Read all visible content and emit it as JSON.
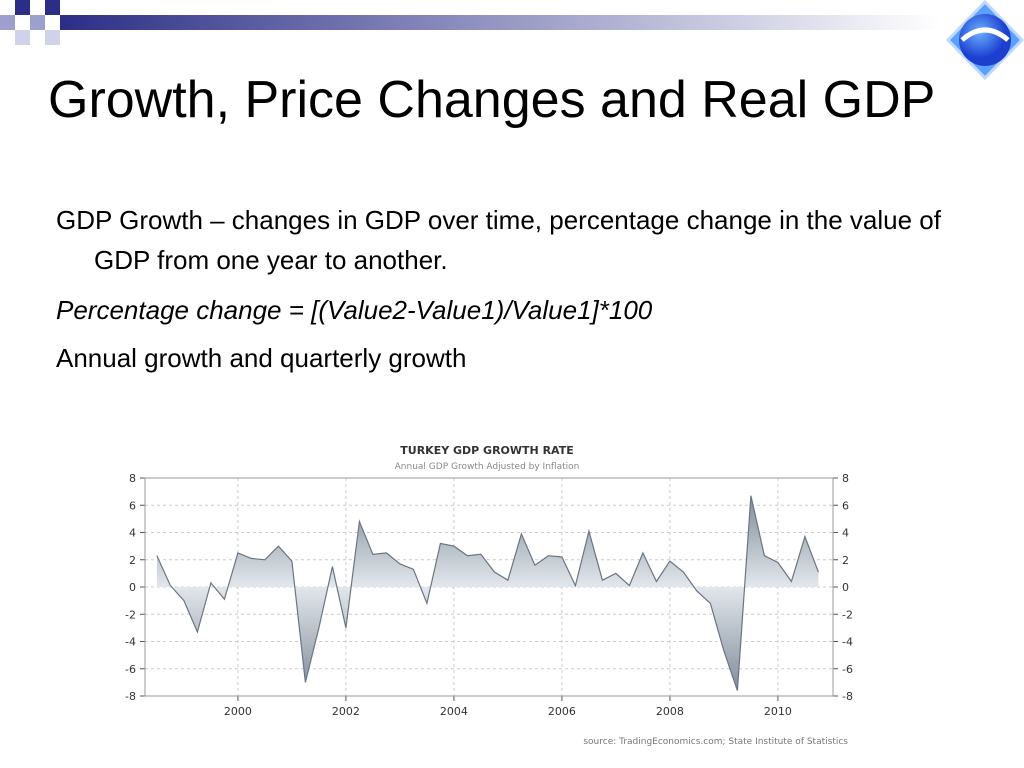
{
  "slide": {
    "title": "Growth, Price Changes and Real GDP",
    "bullets": [
      "GDP Growth – changes in GDP over time, percentage change in the value of GDP from one year to another.",
      "Percentage change = [(Value2-Value1)/Value1]*100",
      "Annual growth and quarterly growth"
    ]
  },
  "chart_data": {
    "type": "area",
    "title": "TURKEY GDP GROWTH RATE",
    "subtitle": "Annual GDP Growth Adjusted by Inflation",
    "source": "source: TradingEconomics.com; State Institute of Statistics",
    "x": [
      1998.5,
      1998.75,
      1999,
      1999.25,
      1999.5,
      1999.75,
      2000,
      2000.25,
      2000.5,
      2000.75,
      2001,
      2001.25,
      2001.5,
      2001.75,
      2002,
      2002.25,
      2002.5,
      2002.75,
      2003,
      2003.25,
      2003.5,
      2003.75,
      2004,
      2004.25,
      2004.5,
      2004.75,
      2005,
      2005.25,
      2005.5,
      2005.75,
      2006,
      2006.25,
      2006.5,
      2006.75,
      2007,
      2007.25,
      2007.5,
      2007.75,
      2008,
      2008.25,
      2008.5,
      2008.75,
      2009,
      2009.25,
      2009.5,
      2009.75,
      2010,
      2010.25,
      2010.5,
      2010.75
    ],
    "series": [
      {
        "color": "#6b7580",
        "values": [
          2.3,
          0.1,
          -1.0,
          -3.3,
          0.3,
          -0.9,
          2.5,
          2.1,
          2.0,
          3.0,
          1.9,
          -7.0,
          -3.0,
          1.5,
          -3.0,
          4.8,
          2.4,
          2.5,
          1.7,
          1.3,
          -1.2,
          3.2,
          3.0,
          2.3,
          2.4,
          1.1,
          0.5,
          3.9,
          1.6,
          2.3,
          2.2,
          0.1,
          4.1,
          0.5,
          1.0,
          0.1,
          2.5,
          0.4,
          1.9,
          1.1,
          -0.3,
          -1.2,
          -4.7,
          -7.6,
          6.7,
          2.3,
          1.8,
          0.4,
          3.7,
          1.1
        ]
      }
    ],
    "xlim": [
      1998.28,
      2011.02
    ],
    "xticks": [
      2000,
      2002,
      2004,
      2006,
      2008,
      2010
    ],
    "ylim": [
      -8,
      8
    ],
    "yticks": [
      -8,
      -6,
      -4,
      -2,
      0,
      2,
      4,
      6,
      8
    ],
    "grid": true
  }
}
